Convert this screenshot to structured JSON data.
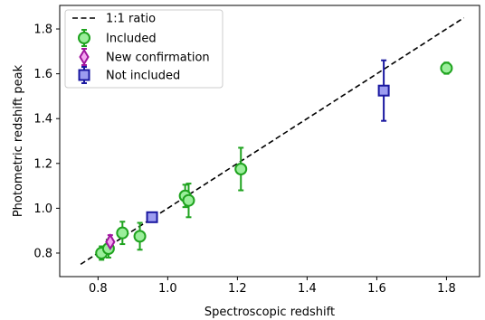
{
  "chart_data": {
    "type": "scatter",
    "xlabel": "Spectroscopic redshift",
    "ylabel": "Photometric redshift peak",
    "xlim": [
      0.69,
      1.895
    ],
    "ylim": [
      0.695,
      1.905
    ],
    "x_ticks": [
      "0.8",
      "1.0",
      "1.2",
      "1.4",
      "1.6",
      "1.8"
    ],
    "y_ticks": [
      "0.8",
      "1.0",
      "1.2",
      "1.4",
      "1.6",
      "1.8"
    ],
    "legend_position": "upper-left",
    "reference_line": {
      "name": "1:1 ratio",
      "x": [
        0.75,
        1.85
      ],
      "y": [
        0.75,
        1.85
      ],
      "color": "#000000",
      "style": "dashed"
    },
    "series": [
      {
        "name": "Included",
        "marker": "circle",
        "edge_color": "#1fa31f",
        "face_color": "#9bee9b",
        "points": [
          {
            "x": 0.81,
            "y": 0.8,
            "yerr": 0.03
          },
          {
            "x": 0.83,
            "y": 0.82,
            "yerr": 0.04
          },
          {
            "x": 0.87,
            "y": 0.89,
            "yerr": 0.05
          },
          {
            "x": 0.92,
            "y": 0.875,
            "yerr": 0.06
          },
          {
            "x": 1.05,
            "y": 1.055,
            "yerr": 0.05
          },
          {
            "x": 1.06,
            "y": 1.035,
            "yerr": 0.075
          },
          {
            "x": 1.21,
            "y": 1.175,
            "yerr": 0.095
          },
          {
            "x": 1.8,
            "y": 1.625,
            "yerr": 0.025
          }
        ]
      },
      {
        "name": "New confirmation",
        "marker": "diamond",
        "edge_color": "#a0159e",
        "face_color": "#f4a8f1",
        "points": [
          {
            "x": 0.835,
            "y": 0.85,
            "yerr": 0.03
          }
        ]
      },
      {
        "name": "Not included",
        "marker": "square",
        "edge_color": "#1a18a0",
        "face_color": "#9c9cf0",
        "points": [
          {
            "x": 0.955,
            "y": 0.96,
            "yerr": 0.01
          },
          {
            "x": 1.62,
            "y": 1.525,
            "yerr": 0.135
          }
        ]
      }
    ]
  }
}
